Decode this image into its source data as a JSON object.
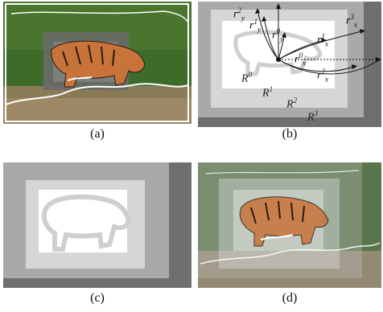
{
  "captions": {
    "a": "(a)",
    "b": "(b)",
    "c": "(c)",
    "d": "(d)"
  },
  "panel_b": {
    "regions": [
      "R",
      "R",
      "R",
      "R"
    ],
    "region_sup": [
      "0",
      "1",
      "2",
      "3"
    ],
    "radii": [
      {
        "base": "r",
        "sub": "y",
        "sup": "2"
      },
      {
        "base": "r",
        "sub": "y",
        "sup": "1"
      },
      {
        "base": "r",
        "sub": "y",
        "sup": "0"
      },
      {
        "base": "r",
        "sub": "x",
        "sup": "0"
      },
      {
        "base": "r",
        "sub": "x",
        "sup": "1"
      },
      {
        "base": "r",
        "sub": "x",
        "sup": "2"
      },
      {
        "base": "r",
        "sub": "x",
        "sup": "3"
      }
    ]
  },
  "colors": {
    "grass": "#3e6a2a",
    "tiger": "#c8733a",
    "region_r0": "#ffffff",
    "region_r1": "#d6d6d6",
    "region_r2": "#a9a9a9",
    "region_r3": "#6f6f6f"
  }
}
